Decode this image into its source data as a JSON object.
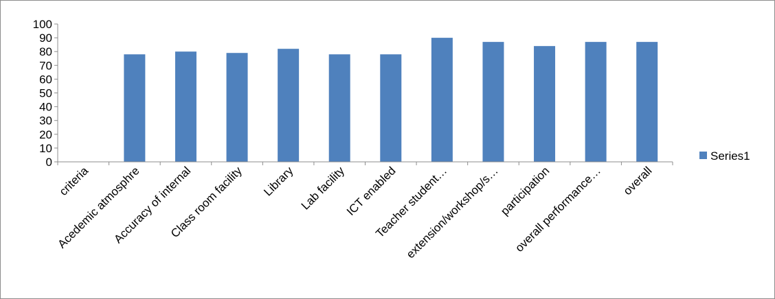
{
  "chart_data": {
    "type": "bar",
    "categories": [
      "criteria",
      "Acedemic atmosphre",
      "Accuracy of internal",
      "Class room facility",
      "Library",
      "Lab facility",
      "ICT enabled",
      "Teacher student…",
      "extension/workshop/s…",
      "participation",
      "overall performance…",
      "overall"
    ],
    "series": [
      {
        "name": "Series1",
        "values": [
          null,
          78,
          80,
          79,
          82,
          78,
          78,
          90,
          87,
          84,
          87,
          87
        ],
        "color": "#4f81bd"
      }
    ],
    "title": "",
    "xlabel": "",
    "ylabel": "",
    "ylim": [
      0,
      100
    ],
    "yticks": [
      "0",
      "10",
      "20",
      "30",
      "40",
      "50",
      "60",
      "70",
      "80",
      "90",
      "100"
    ],
    "grid": false,
    "legend_position": "right"
  }
}
